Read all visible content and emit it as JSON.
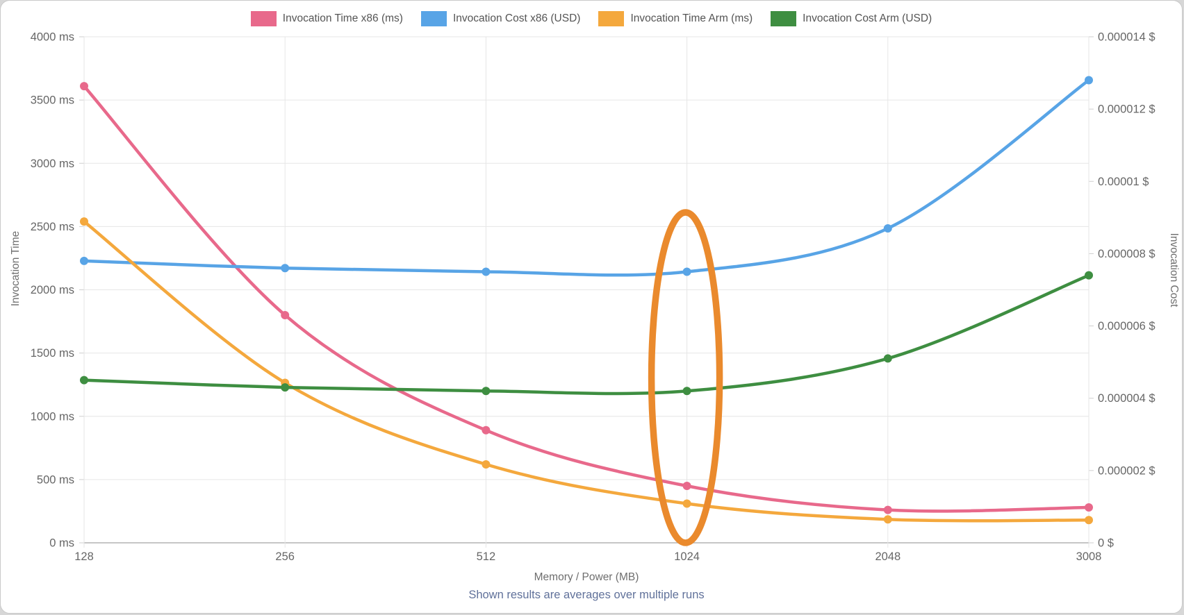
{
  "legend": {
    "items": [
      {
        "label": "Invocation Time x86 (ms)",
        "color": "#e8698b"
      },
      {
        "label": "Invocation Cost x86 (USD)",
        "color": "#58a4e6"
      },
      {
        "label": "Invocation Time Arm (ms)",
        "color": "#f4a83d"
      },
      {
        "label": "Invocation Cost Arm (USD)",
        "color": "#3e8e41"
      }
    ]
  },
  "chart_data": {
    "type": "line",
    "x": [
      128,
      256,
      512,
      1024,
      2048,
      3008
    ],
    "x_tick_labels": [
      "128",
      "256",
      "512",
      "1024",
      "2048",
      "3008"
    ],
    "series": [
      {
        "name": "Invocation Time x86 (ms)",
        "axis": "left",
        "color": "#e8698b",
        "values": [
          3610,
          1800,
          890,
          450,
          260,
          280
        ]
      },
      {
        "name": "Invocation Cost x86 (USD)",
        "axis": "right",
        "color": "#58a4e6",
        "values": [
          7.8e-06,
          7.6e-06,
          7.5e-06,
          7.5e-06,
          8.7e-06,
          1.28e-05
        ]
      },
      {
        "name": "Invocation Time Arm (ms)",
        "axis": "left",
        "color": "#f4a83d",
        "values": [
          2540,
          1265,
          620,
          310,
          185,
          180
        ]
      },
      {
        "name": "Invocation Cost Arm (USD)",
        "axis": "right",
        "color": "#3e8e41",
        "values": [
          4.5e-06,
          4.3e-06,
          4.2e-06,
          4.2e-06,
          5.1e-06,
          7.4e-06
        ]
      }
    ],
    "left_axis": {
      "title": "Invocation Time",
      "min": 0,
      "max": 4000,
      "step": 500,
      "tick_labels": [
        "0 ms",
        "500 ms",
        "1000 ms",
        "1500 ms",
        "2000 ms",
        "2500 ms",
        "3000 ms",
        "3500 ms",
        "4000 ms"
      ]
    },
    "right_axis": {
      "title": "Invocation Cost",
      "min": 0,
      "max": 1.4e-05,
      "step": 2e-06,
      "tick_labels": [
        "0 $",
        "0.000002 $",
        "0.000004 $",
        "0.000006 $",
        "0.000008 $",
        "0.00001 $",
        "0.000012 $",
        "0.000014 $"
      ]
    },
    "x_axis": {
      "title": "Memory / Power (MB)"
    },
    "subtitle": "Shown results are averages over multiple runs",
    "grid": true,
    "legend_position": "top",
    "annotation": {
      "shape": "ellipse",
      "x_category": 1024,
      "color": "#ea8a2d",
      "meaning": "highlight around 1024 MB data points"
    }
  }
}
